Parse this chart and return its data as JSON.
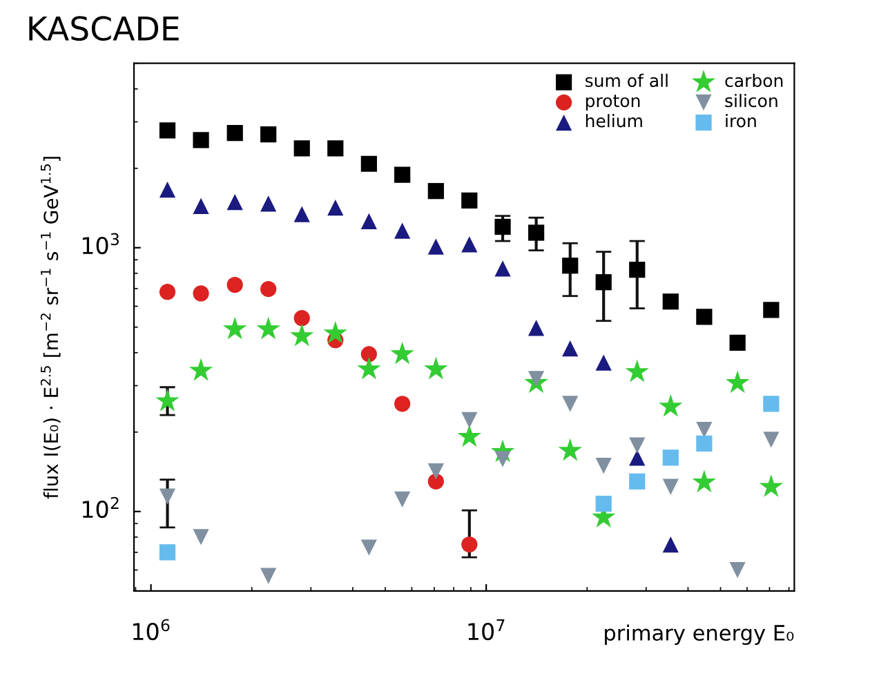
{
  "chart_data": {
    "type": "scatter",
    "title": "KASCADE",
    "xlabel": "primary energy E₀",
    "ylabel": "flux I(E₀) · E$^{2.5}$ [m$^{−2}$ sr$^{−1}$ s$^{−1}$ GeV$^{1.5}$]",
    "x": [
      1120000,
      1410000,
      1780000,
      2240000,
      2820000,
      3550000,
      4470000,
      5620000,
      7080000,
      8910000,
      11200000,
      14100000,
      17800000,
      22400000,
      28200000,
      35500000,
      44700000,
      56200000,
      70800000
    ],
    "log": "xy",
    "xlim": [
      890000,
      83000000
    ],
    "ylim": [
      50,
      5000
    ],
    "xticks": [
      {
        "value": 1000000,
        "label": "10$^{6}$"
      },
      {
        "value": 10000000,
        "label": "10$^{7}$"
      }
    ],
    "yticks": [
      {
        "value": 100,
        "label": "10$^{2}$"
      },
      {
        "value": 1000,
        "label": "10$^{3}$"
      }
    ],
    "grid": false,
    "legend": "top right",
    "series": [
      {
        "name": "sum of all",
        "color": "#000000",
        "marker": "square",
        "values": [
          2785,
          2560,
          2720,
          2690,
          2380,
          2380,
          2080,
          1890,
          1640,
          1510,
          1200,
          1140,
          855,
          740,
          825,
          625,
          547,
          436,
          581
        ],
        "errors": [
          null,
          null,
          null,
          null,
          null,
          null,
          null,
          null,
          null,
          null,
          [
            1060,
            1320
          ],
          [
            977,
            1300
          ],
          [
            656,
            1040
          ],
          [
            528,
            965
          ],
          [
            589,
            1060
          ],
          null,
          null,
          null,
          null
        ]
      },
      {
        "name": "proton",
        "color": "#dd2222",
        "marker": "circle",
        "values": [
          680,
          671,
          723,
          697,
          541,
          446,
          395,
          256,
          130,
          75,
          null,
          null,
          null,
          null,
          null,
          null,
          null,
          null,
          null
        ],
        "errors": [
          null,
          null,
          null,
          null,
          null,
          null,
          null,
          null,
          null,
          [
            67,
            101
          ],
          null,
          null,
          null,
          null,
          null,
          null,
          null,
          null,
          null
        ]
      },
      {
        "name": "helium",
        "color": "#1a1a80",
        "marker": "triangle",
        "values": [
          1660,
          1440,
          1490,
          1470,
          1340,
          1420,
          1260,
          1160,
          1010,
          1030,
          834,
          497,
          415,
          367,
          160,
          75,
          null,
          null,
          null
        ]
      },
      {
        "name": "carbon",
        "color": "#33cc33",
        "marker": "star",
        "values": [
          262,
          342,
          491,
          491,
          462,
          473,
          346,
          395,
          346,
          192,
          168,
          307,
          170,
          95,
          338,
          250,
          129,
          307,
          124
        ],
        "errors": [
          [
            232,
            296
          ],
          null,
          null,
          null,
          null,
          null,
          null,
          null,
          null,
          null,
          null,
          null,
          null,
          null,
          null,
          null,
          null,
          null,
          null
        ]
      },
      {
        "name": "silicon",
        "color": "#8090a0",
        "marker": "triangle_down",
        "values": [
          114,
          80,
          null,
          57,
          null,
          null,
          73,
          111,
          142,
          222,
          158,
          318,
          256,
          149,
          178,
          124,
          204,
          60,
          187
        ],
        "errors": [
          [
            87,
            132
          ],
          null,
          null,
          null,
          null,
          null,
          null,
          null,
          null,
          null,
          null,
          null,
          null,
          null,
          null,
          null,
          null,
          null,
          null
        ]
      },
      {
        "name": "iron",
        "color": "#66bbee",
        "marker": "square",
        "values": [
          70,
          null,
          null,
          null,
          null,
          null,
          null,
          null,
          null,
          null,
          null,
          null,
          null,
          107,
          130,
          160,
          181,
          null,
          256
        ]
      }
    ]
  }
}
